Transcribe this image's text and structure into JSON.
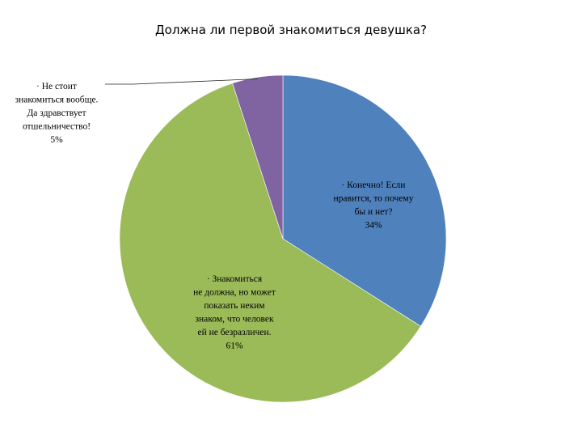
{
  "chart_data": {
    "type": "pie",
    "title": "Должна ли первой знакомиться девушка?",
    "slices": [
      {
        "label_lines": [
          "·         Конечно! Если",
          "нравится, то почему",
          "бы и нет?"
        ],
        "value": 34,
        "value_label": "34%",
        "color": "#4F81BD"
      },
      {
        "label_lines": [
          "·         Знакомиться",
          "не должна, но может",
          "показать неким",
          "знаком, что человек",
          "ей не безразличен."
        ],
        "value": 61,
        "value_label": "61%",
        "color": "#9BBB59"
      },
      {
        "label_lines": [
          "·         Не стоит",
          "знакомиться вообще.",
          "Да здравствует",
          "отшельничество!"
        ],
        "value": 5,
        "value_label": "5%",
        "color": "#8064A2"
      }
    ],
    "legend": "none"
  }
}
